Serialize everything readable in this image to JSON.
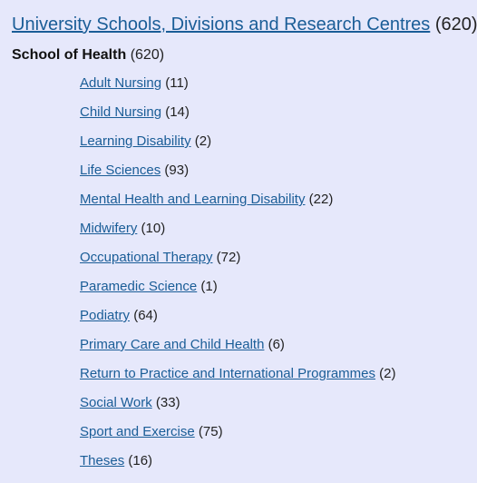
{
  "breadcrumb": {
    "link_label": "University Schools, Divisions and Research Centres",
    "count": "(620)"
  },
  "school": {
    "name": "School of Health",
    "count": "(620)"
  },
  "subjects": [
    {
      "label": "Adult Nursing",
      "count": "(11)"
    },
    {
      "label": "Child Nursing",
      "count": "(14)"
    },
    {
      "label": "Learning Disability",
      "count": "(2)"
    },
    {
      "label": "Life Sciences",
      "count": "(93)"
    },
    {
      "label": "Mental Health and Learning Disability",
      "count": "(22)"
    },
    {
      "label": "Midwifery",
      "count": "(10)"
    },
    {
      "label": "Occupational Therapy",
      "count": "(72)"
    },
    {
      "label": "Paramedic Science",
      "count": "(1)"
    },
    {
      "label": "Podiatry",
      "count": "(64)"
    },
    {
      "label": "Primary Care and Child Health",
      "count": "(6)"
    },
    {
      "label": "Return to Practice and International Programmes",
      "count": "(2)"
    },
    {
      "label": "Social Work",
      "count": "(33)"
    },
    {
      "label": "Sport and Exercise",
      "count": "(75)"
    },
    {
      "label": "Theses",
      "count": "(16)"
    }
  ],
  "colors": {
    "background": "#e6e8fb",
    "link": "#1a5d97",
    "text": "#222222"
  }
}
